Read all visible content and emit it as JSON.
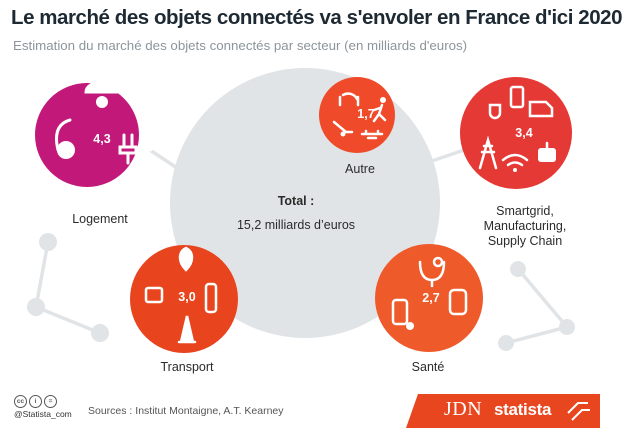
{
  "header": {
    "title": "Le marché des objets connectés va s'envoler en France d'ici 2020",
    "subtitle": "Estimation du marché des objets connectés par secteur (en milliards d'euros)"
  },
  "center": {
    "total_label": "Total :",
    "total_value": "15,2 milliards d’euros"
  },
  "sectors": [
    {
      "label": "Logement",
      "value": "4,3",
      "color": "#c2187a",
      "icons": [
        "security-camera-icon",
        "vacuum-cleaner-icon",
        "plug-icon",
        "phone-icon"
      ]
    },
    {
      "label": "Autre",
      "value": "1,7",
      "color": "#ef4b2b",
      "icons": [
        "headphones-icon",
        "runner-icon",
        "lawnmower-icon",
        "drone-icon"
      ]
    },
    {
      "label": "Smartgrid,",
      "label2": "Manufacturing,",
      "label3": "Supply Chain",
      "value": "3,4",
      "color": "#e53935",
      "icons": [
        "smartphone-icon",
        "van-icon",
        "cup-icon",
        "pylon-icon",
        "wifi-icon",
        "robot-icon"
      ]
    },
    {
      "label": "Transport",
      "value": "3,0",
      "color": "#e8451e",
      "icons": [
        "location-pin-icon",
        "gps-icon",
        "traffic-light-icon",
        "traffic-cone-icon"
      ]
    },
    {
      "label": "Santé",
      "value": "2,7",
      "color": "#ef5a2a",
      "icons": [
        "stethoscope-icon",
        "smartwatch-icon",
        "pill-bottle-icon"
      ]
    }
  ],
  "footer": {
    "cc_icons": [
      "cc",
      "i",
      "="
    ],
    "handle": "@Statista_com",
    "sources": "Sources : Institut Montaigne, A.T. Kearney",
    "partner": "JDN",
    "brand": "statista",
    "band_color": "#e8461f"
  }
}
